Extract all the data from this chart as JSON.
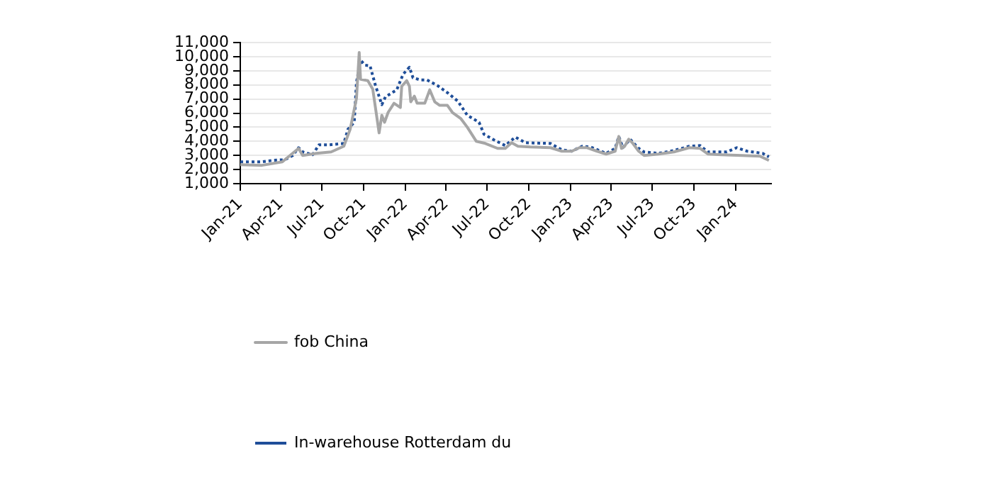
{
  "chart_data": {
    "type": "line",
    "xlim": [
      "2021-01-01",
      "2024-03-20"
    ],
    "xticks": [
      {
        "value": "2021-01-01",
        "label": "Jan-21"
      },
      {
        "value": "2021-04-01",
        "label": "Apr-21"
      },
      {
        "value": "2021-07-01",
        "label": "Jul-21"
      },
      {
        "value": "2021-10-01",
        "label": "Oct-21"
      },
      {
        "value": "2022-01-01",
        "label": "Jan-22"
      },
      {
        "value": "2022-04-01",
        "label": "Apr-22"
      },
      {
        "value": "2022-07-01",
        "label": "Jul-22"
      },
      {
        "value": "2022-10-01",
        "label": "Oct-22"
      },
      {
        "value": "2023-01-01",
        "label": "Jan-23"
      },
      {
        "value": "2023-04-01",
        "label": "Apr-23"
      },
      {
        "value": "2023-07-01",
        "label": "Jul-23"
      },
      {
        "value": "2023-10-01",
        "label": "Oct-23"
      },
      {
        "value": "2024-01-01",
        "label": "Jan-24"
      }
    ],
    "ylim": [
      1000,
      11000
    ],
    "yticks": [
      {
        "value": 1000,
        "label": "1,000"
      },
      {
        "value": 2000,
        "label": "2,000"
      },
      {
        "value": 3000,
        "label": "3,000"
      },
      {
        "value": 4000,
        "label": "4,000"
      },
      {
        "value": 5000,
        "label": "5,000"
      },
      {
        "value": 6000,
        "label": "6,000"
      },
      {
        "value": 7000,
        "label": "7,000"
      },
      {
        "value": 8000,
        "label": "8,000"
      },
      {
        "value": 9000,
        "label": "9,000"
      },
      {
        "value": 10000,
        "label": "10,000"
      },
      {
        "value": 11000,
        "label": "11,000"
      }
    ],
    "grid": "y",
    "legend": "bottom",
    "marker": "none",
    "series": [
      {
        "name": "fob China",
        "color": "#a6a6a6",
        "line_style": "solid",
        "x": [
          "2021-01-01",
          "2021-02-18",
          "2021-04-04",
          "2021-05-10",
          "2021-05-19",
          "2021-06-18",
          "2021-07-21",
          "2021-08-18",
          "2021-09-01",
          "2021-09-15",
          "2021-09-21",
          "2021-09-24",
          "2021-10-10",
          "2021-10-21",
          "2021-11-04",
          "2021-11-10",
          "2021-11-16",
          "2021-11-24",
          "2021-12-07",
          "2021-12-21",
          "2021-12-24",
          "2022-01-04",
          "2022-01-10",
          "2022-01-13",
          "2022-01-21",
          "2022-01-27",
          "2022-02-13",
          "2022-02-24",
          "2022-03-07",
          "2022-03-18",
          "2022-04-04",
          "2022-04-15",
          "2022-05-04",
          "2022-05-18",
          "2022-06-07",
          "2022-06-27",
          "2022-07-24",
          "2022-08-10",
          "2022-08-24",
          "2022-09-07",
          "2022-10-04",
          "2022-11-18",
          "2022-12-13",
          "2023-01-04",
          "2023-01-21",
          "2023-02-07",
          "2023-03-01",
          "2023-03-21",
          "2023-04-10",
          "2023-04-18",
          "2023-04-24",
          "2023-05-01",
          "2023-05-10",
          "2023-05-18",
          "2023-06-01",
          "2023-06-13",
          "2023-07-15",
          "2023-08-18",
          "2023-09-21",
          "2023-10-15",
          "2023-11-01",
          "2023-12-01",
          "2024-01-15",
          "2024-02-24",
          "2024-03-15"
        ],
        "values": [
          2350,
          2300,
          2550,
          3500,
          3000,
          3150,
          3250,
          3650,
          4850,
          7050,
          10300,
          8400,
          8300,
          7700,
          4600,
          5850,
          5350,
          6050,
          6700,
          6400,
          7900,
          8300,
          7900,
          6800,
          7200,
          6700,
          6700,
          7650,
          6800,
          6550,
          6550,
          6050,
          5600,
          5000,
          4000,
          3850,
          3500,
          3500,
          3900,
          3650,
          3600,
          3550,
          3300,
          3300,
          3550,
          3550,
          3300,
          3100,
          3300,
          4350,
          3500,
          3650,
          4150,
          3900,
          3300,
          3000,
          3100,
          3250,
          3550,
          3500,
          3100,
          3050,
          3000,
          2950,
          2650
        ]
      },
      {
        "name": "In-warehouse Rotterdam du",
        "color": "#1f4e99",
        "line_style": "dotted",
        "x": [
          "2021-01-01",
          "2021-02-18",
          "2021-03-13",
          "2021-04-10",
          "2021-04-27",
          "2021-05-10",
          "2021-05-19",
          "2021-06-10",
          "2021-06-24",
          "2021-07-15",
          "2021-08-18",
          "2021-08-27",
          "2021-09-10",
          "2021-09-15",
          "2021-09-24",
          "2021-10-04",
          "2021-10-15",
          "2021-10-27",
          "2021-11-10",
          "2021-11-18",
          "2021-12-13",
          "2021-12-27",
          "2022-01-10",
          "2022-01-18",
          "2022-02-04",
          "2022-02-18",
          "2022-03-13",
          "2022-04-04",
          "2022-04-27",
          "2022-05-18",
          "2022-06-13",
          "2022-06-24",
          "2022-07-16",
          "2022-08-10",
          "2022-09-01",
          "2022-09-24",
          "2022-11-18",
          "2022-12-13",
          "2023-01-04",
          "2023-01-27",
          "2023-02-15",
          "2023-03-21",
          "2023-04-10",
          "2023-04-18",
          "2023-04-27",
          "2023-05-13",
          "2023-06-01",
          "2023-06-13",
          "2023-07-15",
          "2023-08-18",
          "2023-09-21",
          "2023-10-15",
          "2023-11-01",
          "2023-12-13",
          "2024-01-04",
          "2024-01-27",
          "2024-03-01",
          "2024-03-15"
        ],
        "values": [
          2550,
          2550,
          2650,
          2700,
          3000,
          3550,
          3250,
          3050,
          3750,
          3750,
          3850,
          4850,
          5350,
          8200,
          9750,
          9400,
          9350,
          7950,
          6600,
          7150,
          7650,
          8750,
          9250,
          8500,
          8350,
          8350,
          7950,
          7450,
          6850,
          5850,
          5350,
          4500,
          4100,
          3700,
          4300,
          3900,
          3850,
          3400,
          3300,
          3650,
          3600,
          3150,
          3500,
          4350,
          3550,
          4150,
          3500,
          3250,
          3150,
          3350,
          3650,
          3700,
          3250,
          3250,
          3550,
          3300,
          3150,
          2900
        ]
      }
    ]
  }
}
